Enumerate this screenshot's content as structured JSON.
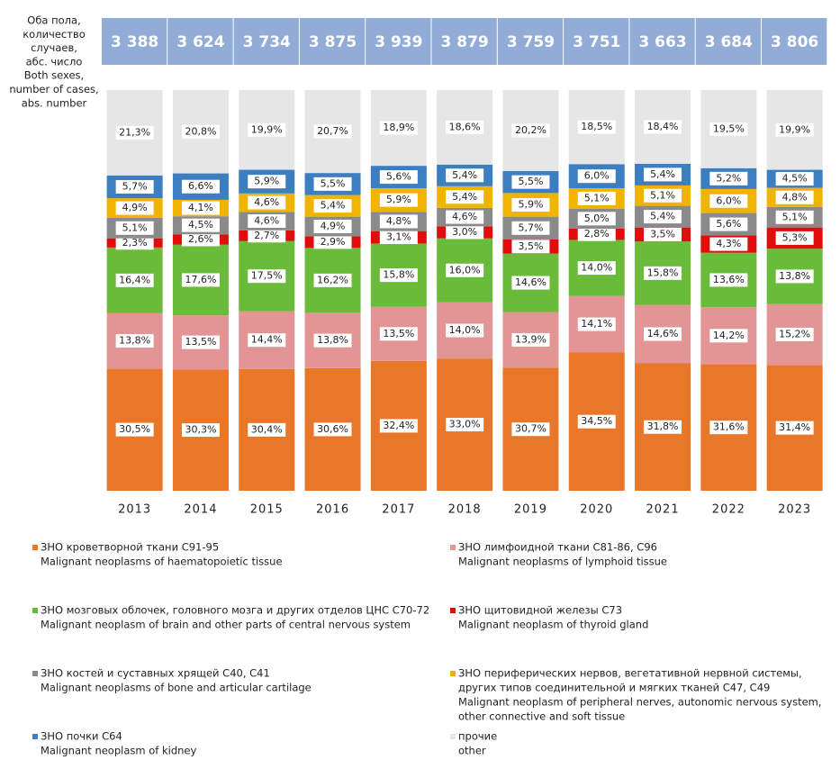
{
  "chart_data": {
    "type": "stacked_bar_percent",
    "totals_label": [
      "Оба пола,",
      "количество",
      "случаев,",
      "абс. число",
      "Both sexes,",
      "number of cases,",
      "abs. number"
    ],
    "totals": [
      {
        "value": 3388,
        "label": "3 388"
      },
      {
        "value": 3624,
        "label": "3 624"
      },
      {
        "value": 3734,
        "label": "3 734"
      },
      {
        "value": 3875,
        "label": "3 875"
      },
      {
        "value": 3939,
        "label": "3 939"
      },
      {
        "value": 3879,
        "label": "3 879"
      },
      {
        "value": 3759,
        "label": "3 759"
      },
      {
        "value": 3751,
        "label": "3 751"
      },
      {
        "value": 3663,
        "label": "3 663"
      },
      {
        "value": 3684,
        "label": "3 684"
      },
      {
        "value": 3806,
        "label": "3 806"
      }
    ],
    "categories": [
      "2013",
      "2014",
      "2015",
      "2016",
      "2017",
      "2018",
      "2019",
      "2020",
      "2021",
      "2022",
      "2023"
    ],
    "series": [
      {
        "name": [
          "ЗНО кроветворной ткани C91-95",
          "Malignant neoplasms of haematopoietic tissue"
        ],
        "color": "#e8772a",
        "values": [
          30.5,
          30.3,
          30.4,
          30.6,
          32.4,
          33.0,
          30.7,
          34.5,
          31.8,
          31.6,
          31.4
        ],
        "value_labels": [
          "30,5%",
          "30,3%",
          "30,4%",
          "30,6%",
          "32,4%",
          "33,0%",
          "30,7%",
          "34,5%",
          "31,8%",
          "31,6%",
          "31,4%"
        ]
      },
      {
        "name": [
          "ЗНО лимфоидной ткани C81-86, C96",
          "Malignant neoplasms of lymphoid tissue"
        ],
        "color": "#e39596",
        "values": [
          13.8,
          13.5,
          14.4,
          13.8,
          13.5,
          14.0,
          13.9,
          14.1,
          14.6,
          14.2,
          15.2
        ],
        "value_labels": [
          "13,8%",
          "13,5%",
          "14,4%",
          "13,8%",
          "13,5%",
          "14,0%",
          "13,9%",
          "14,1%",
          "14,6%",
          "14,2%",
          "15,2%"
        ]
      },
      {
        "name": [
          "ЗНО мозговых облочек, головного мозга и других отделов ЦНС C70-72",
          "Malignant neoplasm of brain and other parts of central nervous system"
        ],
        "color": "#6bbb3a",
        "values": [
          16.4,
          17.6,
          17.5,
          16.2,
          15.8,
          16.0,
          14.6,
          14.0,
          15.8,
          13.6,
          13.8
        ],
        "value_labels": [
          "16,4%",
          "17,6%",
          "17,5%",
          "16,2%",
          "15,8%",
          "16,0%",
          "14,6%",
          "14,0%",
          "15,8%",
          "13,6%",
          "13,8%"
        ]
      },
      {
        "name": [
          "ЗНО щитовидной железы C73",
          "Malignant neoplasm of thyroid gland"
        ],
        "color": "#e00d0d",
        "values": [
          2.3,
          2.6,
          2.7,
          2.9,
          3.1,
          3.0,
          3.5,
          2.8,
          3.5,
          4.3,
          5.3
        ],
        "value_labels": [
          "2,3%",
          "2,6%",
          "2,7%",
          "2,9%",
          "3,1%",
          "3,0%",
          "3,5%",
          "2,8%",
          "3,5%",
          "4,3%",
          "5,3%"
        ]
      },
      {
        "name": [
          "ЗНО костей и суставных хрящей C40, C41",
          "Malignant neoplasms of bone and articular cartilage"
        ],
        "color": "#8a8a8a",
        "values": [
          5.1,
          4.5,
          4.6,
          4.9,
          4.8,
          4.6,
          5.7,
          5.0,
          5.4,
          5.6,
          5.1
        ],
        "value_labels": [
          "5,1%",
          "4,5%",
          "4,6%",
          "4,9%",
          "4,8%",
          "4,6%",
          "5,7%",
          "5,0%",
          "5,4%",
          "5,6%",
          "5,1%"
        ]
      },
      {
        "name": [
          "ЗНО периферических нервов, вегетативной нервной системы,",
          "других типов соединительной и мягких тканей C47, C49",
          "Malignant neoplasm of peripheral nerves, autonomic nervous system,",
          "other connective and soft tissue"
        ],
        "color": "#f0b400",
        "values": [
          4.9,
          4.1,
          4.6,
          5.4,
          5.9,
          5.4,
          5.9,
          5.1,
          5.1,
          6.0,
          4.8
        ],
        "value_labels": [
          "4,9%",
          "4,1%",
          "4,6%",
          "5,4%",
          "5,9%",
          "5,4%",
          "5,9%",
          "5,1%",
          "5,1%",
          "6,0%",
          "4,8%"
        ]
      },
      {
        "name": [
          "ЗНО почки C64",
          "Malignant neoplasm of kidney"
        ],
        "color": "#3b7fc2",
        "values": [
          5.7,
          6.6,
          5.9,
          5.5,
          5.6,
          5.4,
          5.5,
          6.0,
          5.4,
          5.2,
          4.5
        ],
        "value_labels": [
          "5,7%",
          "6,6%",
          "5,9%",
          "5,5%",
          "5,6%",
          "5,4%",
          "5,5%",
          "6,0%",
          "5,4%",
          "5,2%",
          "4,5%"
        ]
      },
      {
        "name": [
          "прочие",
          "other"
        ],
        "color": "#e6e6e6",
        "values": [
          21.3,
          20.8,
          19.9,
          20.7,
          18.9,
          18.6,
          20.2,
          18.5,
          18.4,
          19.5,
          19.9
        ],
        "value_labels": [
          "21,3%",
          "20,8%",
          "19,9%",
          "20,7%",
          "18,9%",
          "18,6%",
          "20,2%",
          "18,5%",
          "18,4%",
          "19,5%",
          "19,9%"
        ]
      }
    ],
    "header_color": "#92acd8"
  }
}
